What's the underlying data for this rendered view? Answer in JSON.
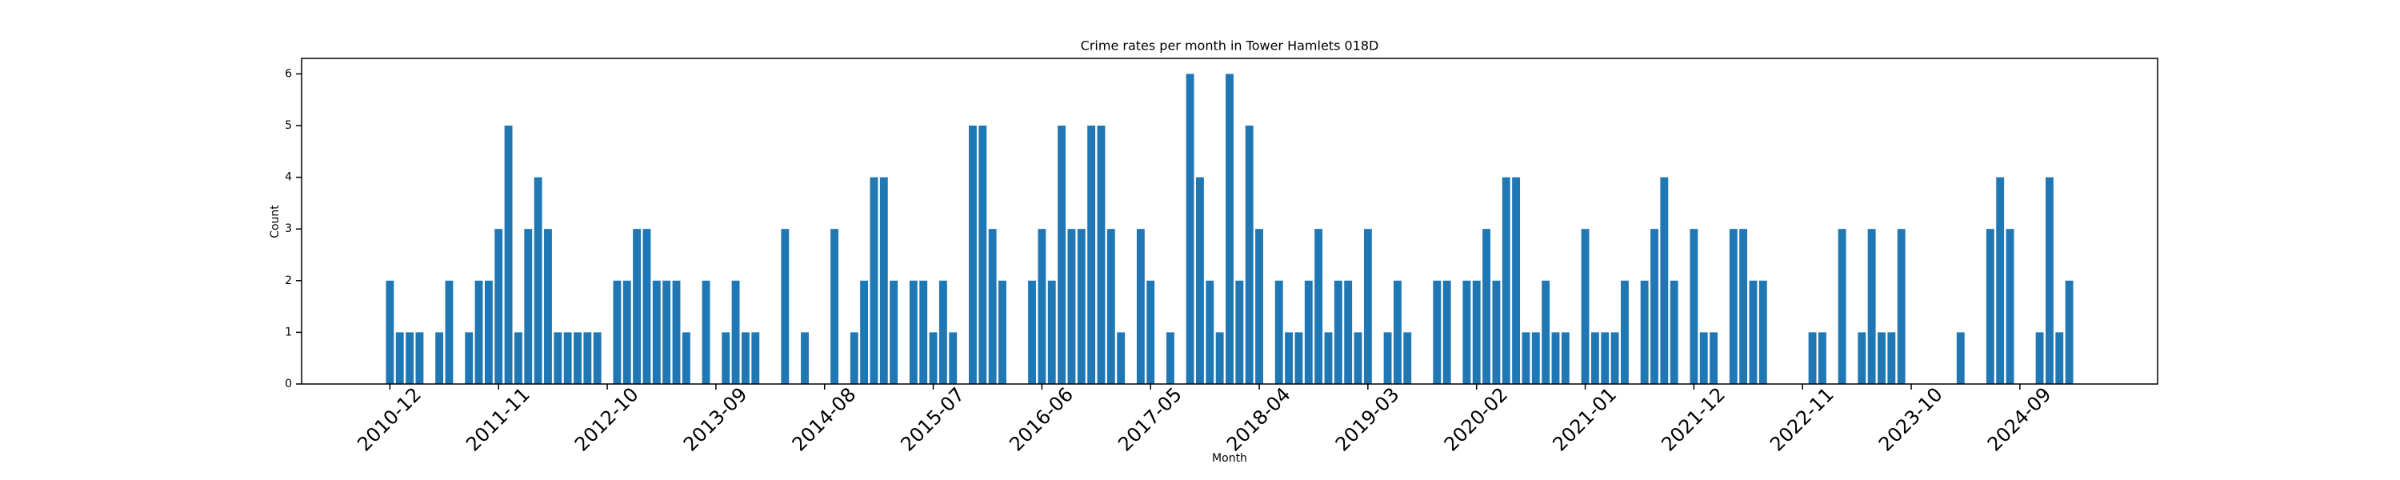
{
  "chart_data": {
    "type": "bar",
    "title": "Crime rates per month in Tower Hamlets 018D",
    "x_label": "Month",
    "y_label": "Count",
    "color": "#1f77b4",
    "categories": [
      "2010-12",
      null,
      null,
      null,
      null,
      null,
      null,
      null,
      null,
      null,
      null,
      "2011-11",
      null,
      null,
      null,
      null,
      null,
      null,
      null,
      null,
      null,
      null,
      "2012-10",
      null,
      null,
      null,
      null,
      null,
      null,
      null,
      null,
      null,
      null,
      "2013-09",
      null,
      null,
      null,
      null,
      null,
      null,
      null,
      null,
      null,
      null,
      "2014-08",
      null,
      null,
      null,
      null,
      null,
      null,
      null,
      null,
      null,
      null,
      "2015-07",
      null,
      null,
      null,
      null,
      null,
      null,
      null,
      null,
      null,
      null,
      "2016-06",
      null,
      null,
      null,
      null,
      null,
      null,
      null,
      null,
      null,
      null,
      "2017-05",
      null,
      null,
      null,
      null,
      null,
      null,
      null,
      null,
      null,
      null,
      "2018-04",
      null,
      null,
      null,
      null,
      null,
      null,
      null,
      null,
      null,
      null,
      "2019-03",
      null,
      null,
      null,
      null,
      null,
      null,
      null,
      null,
      null,
      null,
      "2020-02",
      null,
      null,
      null,
      null,
      null,
      null,
      null,
      null,
      null,
      null,
      "2021-01",
      null,
      null,
      null,
      null,
      null,
      null,
      null,
      null,
      null,
      null,
      "2021-12",
      null,
      null,
      null,
      null,
      null,
      null,
      null,
      null,
      null,
      null,
      "2022-11",
      null,
      null,
      null,
      null,
      null,
      null,
      null,
      null,
      null,
      null,
      "2023-10",
      null,
      null,
      null,
      null,
      null,
      null,
      null,
      null,
      null,
      null,
      "2024-09",
      null,
      null,
      null,
      null,
      null
    ],
    "values": [
      2,
      1,
      1,
      1,
      0,
      1,
      2,
      0,
      1,
      2,
      2,
      3,
      5,
      1,
      3,
      4,
      3,
      1,
      1,
      1,
      1,
      1,
      0,
      2,
      2,
      3,
      3,
      2,
      2,
      2,
      1,
      0,
      2,
      0,
      1,
      2,
      1,
      1,
      0,
      0,
      3,
      0,
      1,
      0,
      0,
      3,
      0,
      1,
      2,
      4,
      4,
      2,
      0,
      2,
      2,
      1,
      2,
      1,
      0,
      5,
      5,
      3,
      2,
      0,
      0,
      2,
      3,
      2,
      5,
      3,
      3,
      5,
      5,
      3,
      1,
      0,
      3,
      2,
      0,
      1,
      0,
      6,
      4,
      2,
      1,
      6,
      2,
      5,
      3,
      0,
      2,
      1,
      1,
      2,
      3,
      1,
      2,
      2,
      1,
      3,
      0,
      1,
      2,
      1,
      0,
      0,
      2,
      2,
      0,
      2,
      2,
      3,
      2,
      4,
      4,
      1,
      1,
      2,
      1,
      1,
      0,
      3,
      1,
      1,
      1,
      2,
      0,
      2,
      3,
      4,
      2,
      0,
      3,
      1,
      1,
      0,
      3,
      3,
      2,
      2,
      0,
      0,
      0,
      0,
      1,
      1,
      0,
      3,
      0,
      1,
      3,
      1,
      1,
      3,
      0,
      0,
      0,
      0,
      0,
      1,
      0,
      0,
      3,
      4,
      3,
      0,
      0,
      1,
      4,
      1,
      2
    ],
    "ylim": [
      0,
      6.3
    ],
    "yticks": [
      0,
      1,
      2,
      3,
      4,
      5,
      6
    ]
  }
}
